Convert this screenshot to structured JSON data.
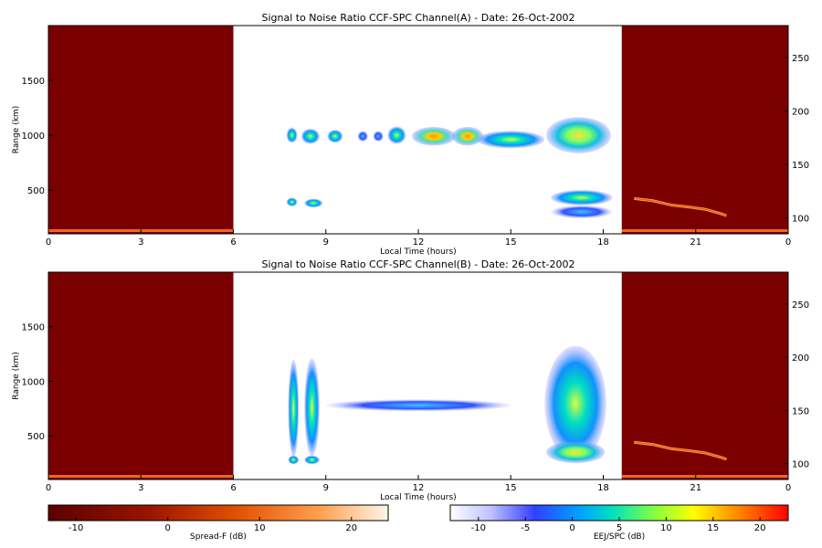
{
  "chart_data": [
    {
      "type": "heatmap",
      "title": "Signal to Noise Ratio CCF-SPC Channel(A) - Date: 26-Oct-2002",
      "xlabel": "Local Time (hours)",
      "ylabel": "Range (km)",
      "xlim": [
        0,
        24
      ],
      "ylim": [
        100,
        2000
      ],
      "x_ticks": [
        "0",
        "3",
        "6",
        "9",
        "12",
        "15",
        "18",
        "21",
        "0"
      ],
      "y_ticks": [
        "500",
        "1000",
        "1500"
      ],
      "right_ylim": [
        85,
        280
      ],
      "right_ticks": [
        "100",
        "150",
        "200",
        "250"
      ],
      "regions": [
        {
          "name": "Spread-F",
          "x": [
            0,
            6
          ]
        },
        {
          "name": "EEJ/SPC",
          "x": [
            6,
            18.6
          ]
        },
        {
          "name": "Spread-F",
          "x": [
            18.6,
            24
          ]
        }
      ],
      "echo_blobs": [
        {
          "x": 7.9,
          "y": 1000,
          "w": 0.35,
          "h": 140,
          "level": 2
        },
        {
          "x": 8.5,
          "y": 990,
          "w": 0.6,
          "h": 140,
          "level": 2
        },
        {
          "x": 9.3,
          "y": 990,
          "w": 0.5,
          "h": 120,
          "level": 2
        },
        {
          "x": 10.2,
          "y": 990,
          "w": 0.35,
          "h": 100,
          "level": 1
        },
        {
          "x": 10.7,
          "y": 990,
          "w": 0.35,
          "h": 100,
          "level": 1
        },
        {
          "x": 11.3,
          "y": 1000,
          "w": 0.6,
          "h": 160,
          "level": 2
        },
        {
          "x": 12.5,
          "y": 990,
          "w": 1.4,
          "h": 170,
          "level": 4
        },
        {
          "x": 13.6,
          "y": 990,
          "w": 1.0,
          "h": 170,
          "level": 4
        },
        {
          "x": 15.0,
          "y": 960,
          "w": 2.2,
          "h": 160,
          "level": 2
        },
        {
          "x": 17.2,
          "y": 1000,
          "w": 2.1,
          "h": 330,
          "level": 3
        },
        {
          "x": 7.9,
          "y": 390,
          "w": 0.35,
          "h": 80,
          "level": 2
        },
        {
          "x": 8.6,
          "y": 380,
          "w": 0.6,
          "h": 80,
          "level": 2
        },
        {
          "x": 17.3,
          "y": 430,
          "w": 2.0,
          "h": 140,
          "level": 2
        },
        {
          "x": 17.3,
          "y": 300,
          "w": 2.0,
          "h": 120,
          "level": 1
        }
      ],
      "f_trace": [
        [
          19.0,
          118
        ],
        [
          19.6,
          116
        ],
        [
          20.2,
          112
        ],
        [
          20.8,
          110
        ],
        [
          21.3,
          108
        ],
        [
          21.8,
          104
        ],
        [
          22.0,
          102
        ]
      ]
    },
    {
      "type": "heatmap",
      "title": "Signal to Noise Ratio CCF-SPC Channel(B) - Date: 26-Oct-2002",
      "xlabel": "Local Time (hours)",
      "ylabel": "Range (km)",
      "xlim": [
        0,
        24
      ],
      "ylim": [
        100,
        2000
      ],
      "x_ticks": [
        "0",
        "3",
        "6",
        "9",
        "12",
        "15",
        "18",
        "21",
        "0"
      ],
      "y_ticks": [
        "500",
        "1000",
        "1500"
      ],
      "right_ylim": [
        85,
        280
      ],
      "right_ticks": [
        "100",
        "150",
        "200",
        "250"
      ],
      "regions": [
        {
          "name": "Spread-F",
          "x": [
            0,
            6
          ]
        },
        {
          "name": "EEJ/SPC",
          "x": [
            6,
            18.6
          ]
        },
        {
          "name": "Spread-F",
          "x": [
            18.6,
            24
          ]
        }
      ],
      "echo_blobs": [
        {
          "x": 7.95,
          "y": 750,
          "w": 0.35,
          "h": 900,
          "level": 2
        },
        {
          "x": 8.55,
          "y": 760,
          "w": 0.5,
          "h": 900,
          "level": 2
        },
        {
          "x": 7.95,
          "y": 280,
          "w": 0.35,
          "h": 80,
          "level": 2
        },
        {
          "x": 8.55,
          "y": 280,
          "w": 0.5,
          "h": 80,
          "level": 2
        },
        {
          "x": 12.0,
          "y": 780,
          "w": 6.0,
          "h": 110,
          "level": 1
        },
        {
          "x": 17.1,
          "y": 800,
          "w": 2.0,
          "h": 1050,
          "level": 2
        },
        {
          "x": 17.1,
          "y": 350,
          "w": 1.9,
          "h": 200,
          "level": 3
        }
      ],
      "f_trace": [
        [
          19.0,
          120
        ],
        [
          19.6,
          118
        ],
        [
          20.2,
          114
        ],
        [
          20.8,
          112
        ],
        [
          21.3,
          110
        ],
        [
          21.8,
          106
        ],
        [
          22.0,
          104
        ]
      ]
    }
  ],
  "colorbars": [
    {
      "label": "Spread-F (dB)",
      "range": [
        -13,
        24
      ],
      "ticks": [
        "-10",
        "0",
        "10",
        "20"
      ],
      "palette": "red-temperature"
    },
    {
      "label": "EEJ/SPC (dB)",
      "range": [
        -13,
        23
      ],
      "ticks": [
        "-10",
        "-5",
        "0",
        "5",
        "10",
        "15",
        "20"
      ],
      "palette": "rainbow"
    }
  ],
  "colors": {
    "spread_f_bg": "#7a0000",
    "eej_bg": "#ffffff"
  }
}
